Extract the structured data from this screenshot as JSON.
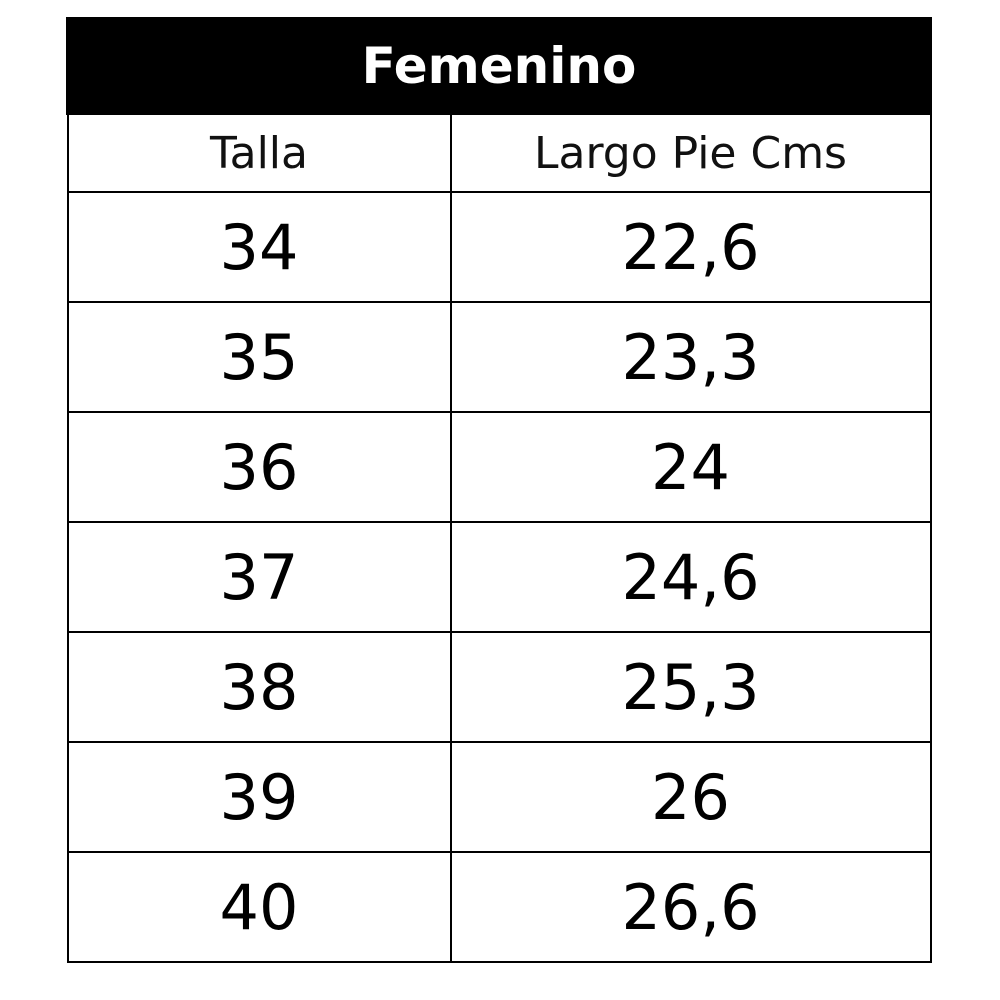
{
  "title": "Femenino",
  "columns": [
    "Talla",
    "Largo Pie Cms"
  ],
  "rows": [
    [
      "34",
      "22,6"
    ],
    [
      "35",
      "23,3"
    ],
    [
      "36",
      "24"
    ],
    [
      "37",
      "24,6"
    ],
    [
      "38",
      "25,3"
    ],
    [
      "39",
      "26"
    ],
    [
      "40",
      "26,6"
    ]
  ]
}
